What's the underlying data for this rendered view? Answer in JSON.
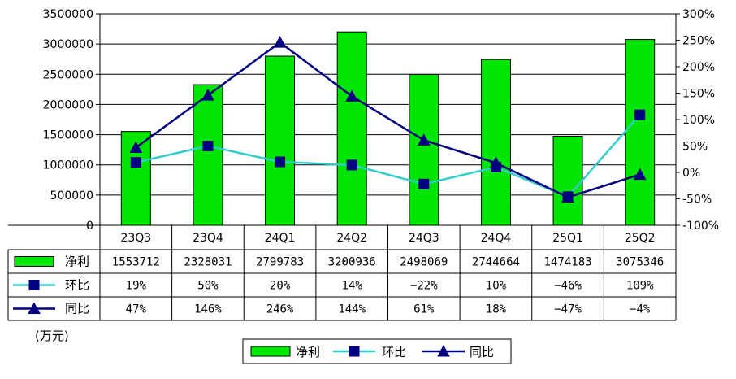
{
  "chart_data": {
    "type": "bar",
    "categories": [
      "23Q3",
      "23Q4",
      "24Q1",
      "24Q2",
      "24Q3",
      "24Q4",
      "25Q1",
      "25Q2"
    ],
    "y_left": {
      "ylim": [
        0,
        3500000
      ],
      "ticks": [
        0,
        500000,
        1000000,
        1500000,
        2000000,
        2500000,
        3000000,
        3500000
      ],
      "tick_labels": [
        "0",
        "500000",
        "1000000",
        "1500000",
        "2000000",
        "2500000",
        "3000000",
        "3500000"
      ]
    },
    "y_right": {
      "ylim": [
        -100,
        300
      ],
      "ticks": [
        -100,
        -50,
        0,
        50,
        100,
        150,
        200,
        250,
        300
      ],
      "tick_labels": [
        "-100%",
        "-50%",
        "0%",
        "50%",
        "100%",
        "150%",
        "200%",
        "250%",
        "300%"
      ]
    },
    "grid": "horizontal",
    "series": [
      {
        "name": "净利",
        "type": "bar",
        "axis": "left",
        "color": "#00e600",
        "values": [
          1553712,
          2328031,
          2799783,
          3200936,
          2498069,
          2744664,
          1474183,
          3075346
        ],
        "labels": [
          "1553712",
          "2328031",
          "2799783",
          "3200936",
          "2498069",
          "2744664",
          "1474183",
          "3075346"
        ]
      },
      {
        "name": "环比",
        "type": "line",
        "axis": "right",
        "marker": "square",
        "color": "#33cccc",
        "values": [
          19,
          50,
          20,
          14,
          -22,
          10,
          -46,
          109
        ],
        "labels": [
          "19%",
          "50%",
          "20%",
          "14%",
          "−22%",
          "10%",
          "−46%",
          "109%"
        ]
      },
      {
        "name": "同比",
        "type": "line",
        "axis": "right",
        "marker": "triangle",
        "color": "#000080",
        "values": [
          47,
          146,
          246,
          144,
          61,
          18,
          -47,
          -4
        ],
        "labels": [
          "47%",
          "146%",
          "246%",
          "144%",
          "61%",
          "18%",
          "−47%",
          "−4%"
        ]
      }
    ],
    "unit_label": "(万元)",
    "legend": {
      "position": "bottom-center",
      "entries": [
        "净利",
        "环比",
        "同比"
      ]
    }
  }
}
